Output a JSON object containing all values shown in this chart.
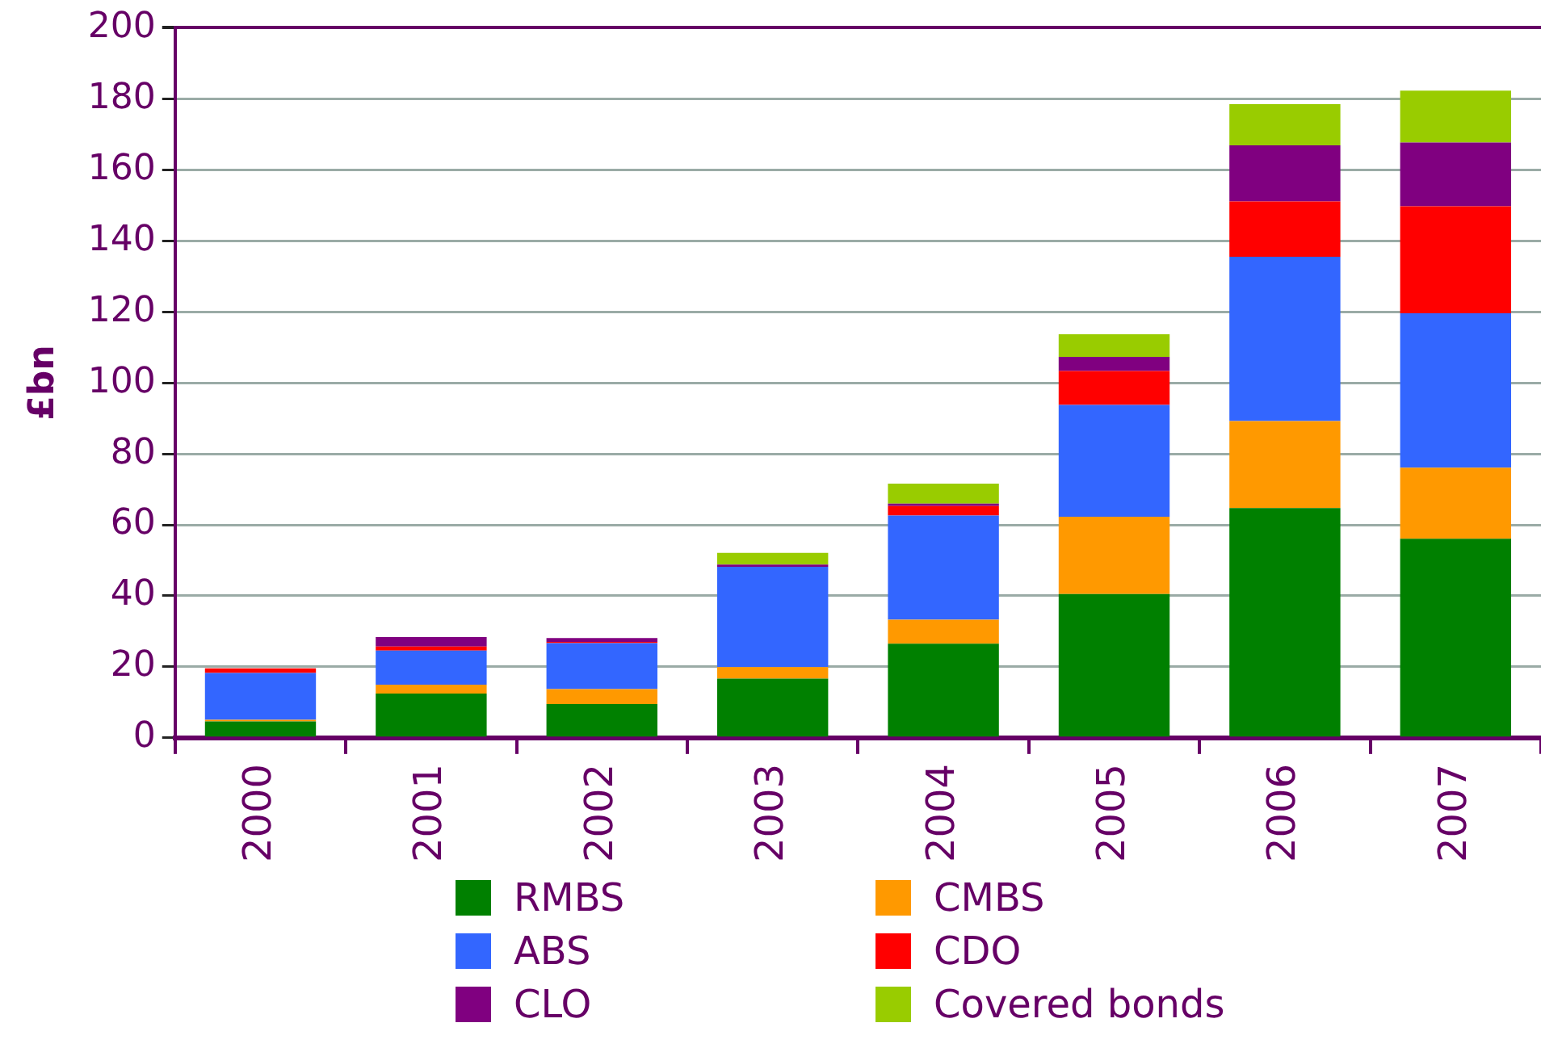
{
  "chart_data": {
    "type": "bar",
    "stacked": true,
    "ylabel": "£bn",
    "categories": [
      "2000",
      "2001",
      "2002",
      "2003",
      "2004",
      "2005",
      "2006",
      "2007"
    ],
    "series": [
      {
        "name": "RMBS",
        "color": "#008000",
        "values": [
          4.6,
          12.5,
          9.5,
          16.7,
          26.5,
          40.5,
          64.7,
          56.1
        ]
      },
      {
        "name": "CMBS",
        "color": "#ff9900",
        "values": [
          0.5,
          2.5,
          4.2,
          3.2,
          6.8,
          21.8,
          24.5,
          20
        ]
      },
      {
        "name": "ABS",
        "color": "#3366ff",
        "values": [
          13.2,
          9.6,
          13,
          28.3,
          29.3,
          31.5,
          46.3,
          43.5
        ]
      },
      {
        "name": "CDO",
        "color": "#ff0000",
        "values": [
          1.3,
          1.1,
          0.3,
          0,
          2.7,
          9.5,
          15.6,
          30.1
        ]
      },
      {
        "name": "CLO",
        "color": "#800080",
        "values": [
          0,
          2.7,
          1.1,
          0.6,
          0.7,
          4,
          15.8,
          18
        ]
      },
      {
        "name": "Covered bonds",
        "color": "#99cc00",
        "values": [
          0,
          0,
          0,
          3.3,
          5.6,
          6.4,
          11.6,
          14.6
        ]
      }
    ],
    "ylim": [
      0,
      200
    ],
    "yticks": [
      0,
      20,
      40,
      60,
      80,
      100,
      120,
      140,
      160,
      180,
      200
    ],
    "grid": "y",
    "legend": "bottom"
  }
}
